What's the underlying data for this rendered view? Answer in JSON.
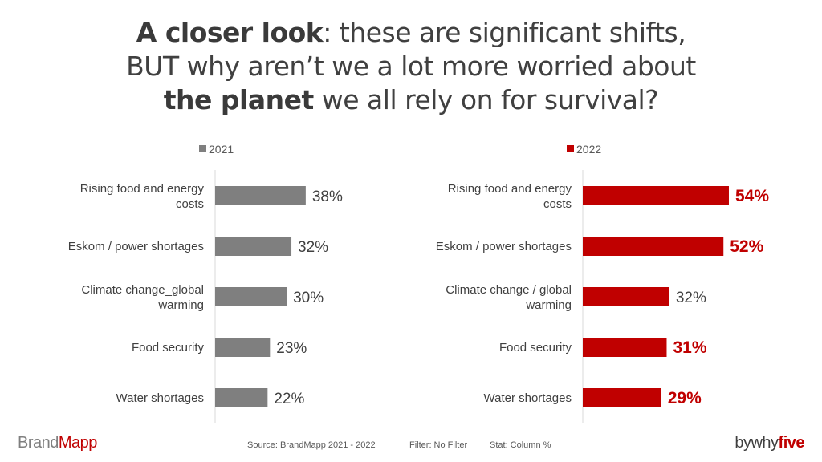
{
  "title": {
    "line1_bold": "A closer look",
    "line1_rest": ": these are significant shifts,",
    "line2": "BUT why aren’t we a lot more worried about",
    "line3_bold": "the planet",
    "line3_rest": " we all rely on for survival?"
  },
  "chart_data": [
    {
      "type": "bar",
      "orientation": "horizontal",
      "legend": "2021",
      "color": "#7f7f7f",
      "categories": [
        "Rising food and energy costs",
        "Eskom / power shortages",
        "Climate change_global warming",
        "Food security",
        "Water shortages"
      ],
      "values": [
        38,
        32,
        30,
        23,
        22
      ],
      "labels": [
        "38%",
        "32%",
        "30%",
        "23%",
        "22%"
      ],
      "highlight": [
        false,
        false,
        false,
        false,
        false
      ]
    },
    {
      "type": "bar",
      "orientation": "horizontal",
      "legend": "2022",
      "color": "#c00000",
      "categories": [
        "Rising food and energy costs",
        "Eskom / power shortages",
        "Climate change / global warming",
        "Food security",
        "Water shortages"
      ],
      "values": [
        54,
        52,
        32,
        31,
        29
      ],
      "labels": [
        "54%",
        "52%",
        "32%",
        "31%",
        "29%"
      ],
      "highlight": [
        true,
        true,
        false,
        true,
        true
      ]
    }
  ],
  "footer": {
    "source": "Source: BrandMapp 2021 - 2022",
    "filter": "Filter: No Filter",
    "stat": "Stat: Column %",
    "brand_a": "Brand",
    "brand_b": "Mapp",
    "why_a": "bywhy",
    "why_b": "five"
  }
}
